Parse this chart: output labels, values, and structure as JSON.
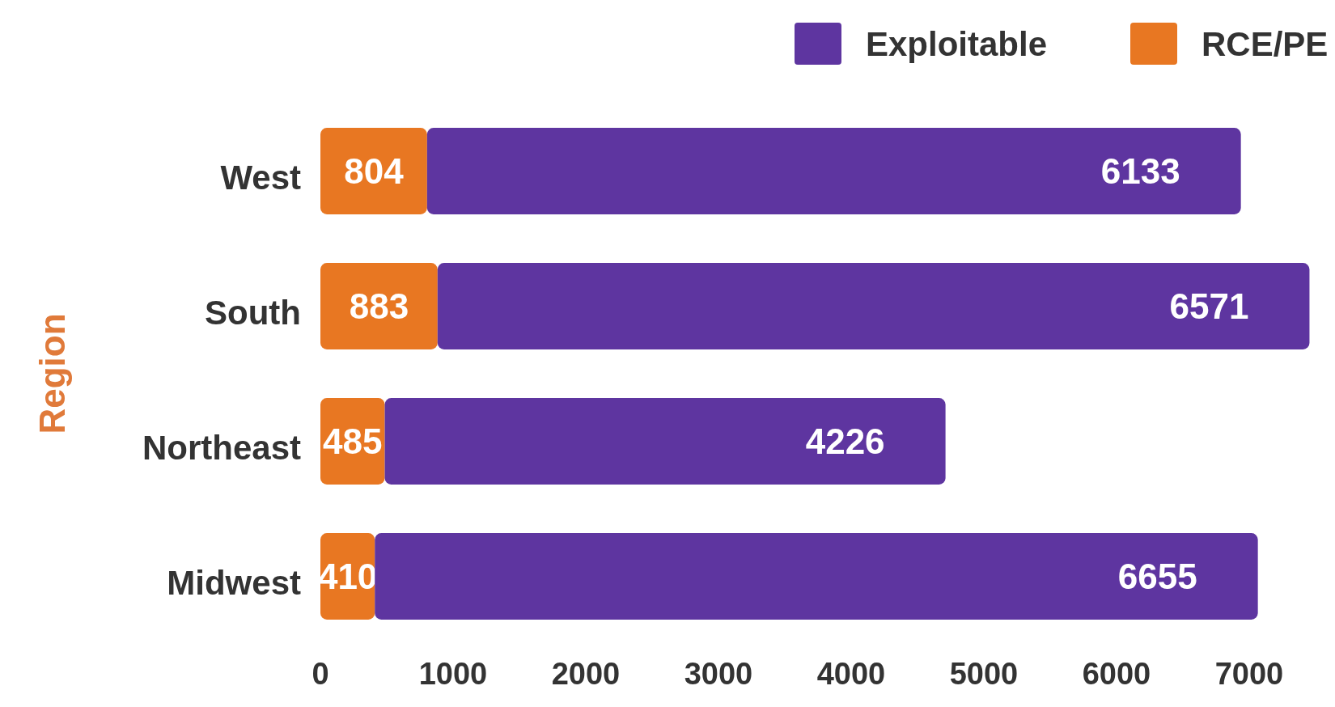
{
  "chart_data": {
    "type": "bar",
    "orientation": "horizontal",
    "stacked": true,
    "categories": [
      "West",
      "South",
      "Northeast",
      "Midwest"
    ],
    "series": [
      {
        "name": "RCE/PE",
        "color": "#e87722",
        "values": [
          804,
          883,
          485,
          410
        ]
      },
      {
        "name": "Exploitable",
        "color": "#5e35a0",
        "values": [
          6133,
          6571,
          4226,
          6655
        ]
      }
    ],
    "ylabel": "Region",
    "xlim": [
      0,
      7500
    ],
    "xticks": [
      0,
      1000,
      2000,
      3000,
      4000,
      5000,
      6000,
      7000
    ],
    "data_labels": true,
    "legend": "top right",
    "grid": false
  }
}
